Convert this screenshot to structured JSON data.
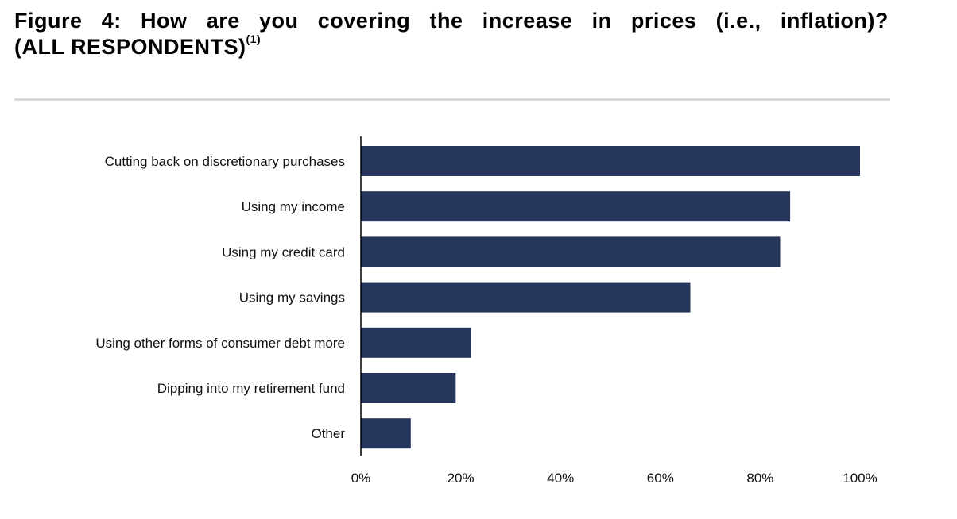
{
  "header": {
    "title_line1_words": [
      "Figure",
      "4:",
      "How",
      "are",
      "you",
      "covering",
      "the",
      "increase",
      "in",
      "prices",
      "(i.e.,",
      "inflation)?"
    ],
    "title_line2": "(ALL RESPONDENTS)",
    "footnote_marker": "(1)"
  },
  "chart_data": {
    "type": "bar",
    "orientation": "horizontal",
    "categories": [
      "Cutting back on discretionary purchases",
      "Using my income",
      "Using my credit card",
      "Using my savings",
      "Using other forms of consumer debt more",
      "Dipping into my retirement fund",
      "Other"
    ],
    "values": [
      100,
      86,
      84,
      66,
      22,
      19,
      10
    ],
    "value_unit": "%",
    "xlim": [
      0,
      100
    ],
    "x_ticks": [
      "0%",
      "20%",
      "40%",
      "60%",
      "80%",
      "100%"
    ],
    "bar_color": "#26355c",
    "grid": false,
    "legend": "none"
  }
}
